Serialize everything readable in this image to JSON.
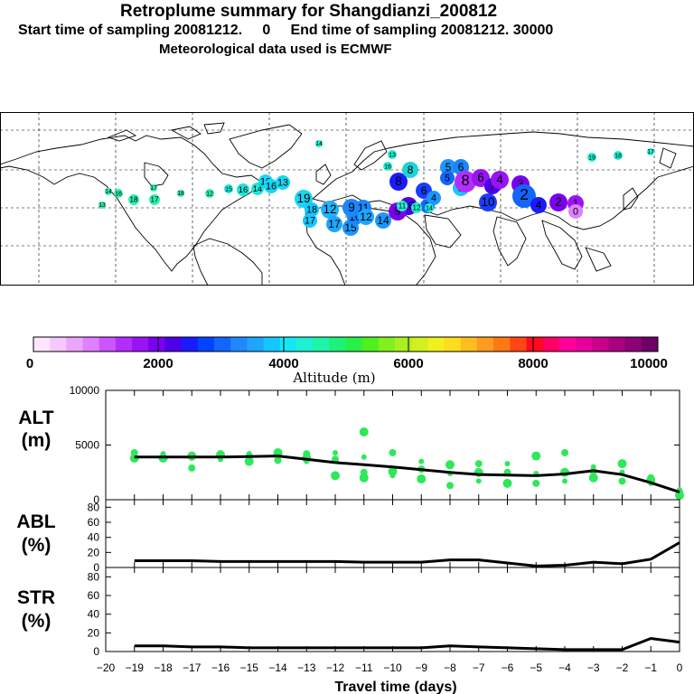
{
  "header": {
    "title": "Retroplume summary for Shangdianzi_200812",
    "line2": "Start time of sampling 20081212.     0     End time of sampling 20081212. 30000",
    "line3": "Meteorological data used is ECMWF"
  },
  "colorbar": {
    "label": "Altitude (m)",
    "ticks": [
      "0",
      "2000",
      "4000",
      "6000",
      "8000",
      "10000"
    ],
    "colors": [
      "#ffe6ff",
      "#f5c8ff",
      "#eaa6ff",
      "#de80ff",
      "#cc55ff",
      "#b42dff",
      "#9914f5",
      "#7a00f0",
      "#4d00e6",
      "#1a1aff",
      "#0044ff",
      "#1464ff",
      "#2088ff",
      "#1ea6ff",
      "#14c8ff",
      "#14e6f5",
      "#1ef0d2",
      "#1ef5aa",
      "#1ef078",
      "#28f046",
      "#50f01e",
      "#82f01e",
      "#aaf01e",
      "#d2f01e",
      "#f0f01e",
      "#ffdc1e",
      "#ffbe1e",
      "#ff9b1e",
      "#ff7814",
      "#ff4614",
      "#ff0a1e",
      "#ff0064",
      "#ff009b",
      "#e6009b",
      "#c8008c",
      "#aa0082",
      "#8c0078",
      "#6e0064"
    ]
  },
  "map": {
    "markers": [
      {
        "label": "13",
        "color": "#2ef0b0"
      },
      {
        "label": "16",
        "color": "#2ef0b0"
      },
      {
        "label": "18",
        "color": "#2ef0b0"
      },
      {
        "label": "17",
        "color": "#2ef0b0"
      },
      {
        "label": "14",
        "color": "#2ef0b0"
      },
      {
        "label": "18",
        "color": "#2ef0b0"
      },
      {
        "label": "17",
        "color": "#2ef0b0"
      },
      {
        "label": "12",
        "color": "#2ef0b0"
      },
      {
        "label": "15",
        "color": "#1ee6d8"
      },
      {
        "label": "16",
        "color": "#1ee6d8"
      },
      {
        "label": "14",
        "color": "#1ee6d8"
      },
      {
        "label": "10",
        "color": "#14d8f5"
      },
      {
        "label": "16",
        "color": "#14d8f5"
      },
      {
        "label": "13",
        "color": "#14d8f5"
      },
      {
        "label": "19",
        "color": "#14d8f5"
      },
      {
        "label": "17",
        "color": "#14c8ff"
      },
      {
        "label": "18",
        "color": "#14c8ff"
      },
      {
        "label": "12",
        "color": "#1eb4ff"
      },
      {
        "label": "17",
        "color": "#1ea6ff"
      },
      {
        "label": "15",
        "color": "#1e96ff"
      },
      {
        "label": "10",
        "color": "#1a86ff"
      },
      {
        "label": "9",
        "color": "#1a86ff"
      },
      {
        "label": "11",
        "color": "#1a86ff"
      },
      {
        "label": "12",
        "color": "#1ea6ff"
      },
      {
        "label": "14",
        "color": "#1e96ff"
      },
      {
        "label": "10",
        "color": "#4d00e6"
      },
      {
        "label": "8",
        "color": "#1a1aff"
      },
      {
        "label": "9",
        "color": "#7a00f0"
      },
      {
        "label": "8",
        "color": "#1ed4d4"
      },
      {
        "label": "6",
        "color": "#1a3cff"
      },
      {
        "label": "7",
        "color": "#1464ff"
      },
      {
        "label": "4",
        "color": "#1e96ff"
      },
      {
        "label": "5",
        "color": "#1e96ff"
      },
      {
        "label": "6",
        "color": "#1a86ff"
      },
      {
        "label": "5",
        "color": "#14c8ff"
      },
      {
        "label": "5",
        "color": "#1464ff"
      },
      {
        "label": "8",
        "color": "#b42dff"
      },
      {
        "label": "6",
        "color": "#9914f5"
      },
      {
        "label": "7",
        "color": "#4d00e6"
      },
      {
        "label": "4",
        "color": "#9914f5"
      },
      {
        "label": "3",
        "color": "#7a00f0"
      },
      {
        "label": "10",
        "color": "#1a3cff"
      },
      {
        "label": "2",
        "color": "#1464ff"
      },
      {
        "label": "4",
        "color": "#1a1aff"
      },
      {
        "label": "2",
        "color": "#7a00f0"
      },
      {
        "label": "1",
        "color": "#9914f5"
      },
      {
        "label": "0",
        "color": "#de80ff"
      },
      {
        "label": "14",
        "color": "#1ef0d2"
      },
      {
        "label": "19",
        "color": "#1ef0d2"
      },
      {
        "label": "18",
        "color": "#1ef0d2"
      },
      {
        "label": "17",
        "color": "#1ef0d2"
      },
      {
        "label": "11",
        "color": "#1ef0d2"
      },
      {
        "label": "12",
        "color": "#1ef0d2"
      },
      {
        "label": "14",
        "color": "#1ef0d2"
      },
      {
        "label": "16",
        "color": "#1ef0d2"
      },
      {
        "label": "13",
        "color": "#1ef0d2"
      }
    ]
  },
  "chart_data": [
    {
      "type": "scatter",
      "name": "ALT",
      "ylabel": "ALT\n(m)",
      "ylim": [
        0,
        10000
      ],
      "y_ticks": [
        "0",
        "5000",
        "10000"
      ],
      "x": [
        -19,
        -18,
        -17,
        -16,
        -15,
        -14,
        -13,
        -12,
        -11,
        -10,
        -9,
        -8,
        -7,
        -6,
        -5,
        -4,
        -3,
        -2,
        -1,
        0
      ],
      "mean_altitude_m": [
        3900,
        3900,
        3900,
        3900,
        3950,
        4000,
        3700,
        3400,
        3200,
        3000,
        2750,
        2500,
        2300,
        2250,
        2200,
        2350,
        2650,
        2300,
        1550,
        700
      ],
      "cluster_points": [
        {
          "x": -19,
          "y": [
            4300,
            3800,
            3700
          ]
        },
        {
          "x": -18,
          "y": [
            4200,
            3900,
            3800
          ]
        },
        {
          "x": -17,
          "y": [
            4000,
            3800,
            2900
          ]
        },
        {
          "x": -16,
          "y": [
            4200,
            4100,
            3700
          ]
        },
        {
          "x": -15,
          "y": [
            4200,
            4000,
            3500
          ]
        },
        {
          "x": -14,
          "y": [
            4300,
            3800,
            3600
          ]
        },
        {
          "x": -13,
          "y": [
            4200,
            3800,
            3500
          ]
        },
        {
          "x": -12,
          "y": [
            4300,
            3700,
            2200
          ]
        },
        {
          "x": -11,
          "y": [
            6200,
            3900,
            2500,
            2000
          ]
        },
        {
          "x": -10,
          "y": [
            4300,
            2600,
            2200
          ]
        },
        {
          "x": -9,
          "y": [
            3500,
            2800,
            1900
          ]
        },
        {
          "x": -8,
          "y": [
            3200,
            2400,
            1300
          ]
        },
        {
          "x": -7,
          "y": [
            3300,
            2500,
            1700
          ]
        },
        {
          "x": -6,
          "y": [
            3300,
            2500,
            1500
          ]
        },
        {
          "x": -5,
          "y": [
            4000,
            2400,
            1500
          ]
        },
        {
          "x": -4,
          "y": [
            4300,
            2500,
            1700
          ]
        },
        {
          "x": -3,
          "y": [
            3000,
            2600,
            2000
          ]
        },
        {
          "x": -2,
          "y": [
            3300,
            2500,
            1700
          ]
        },
        {
          "x": -1,
          "y": [
            2000,
            1800,
            1500
          ]
        },
        {
          "x": 0,
          "y": [
            900,
            700,
            400
          ]
        }
      ]
    },
    {
      "type": "line",
      "name": "ABL",
      "ylabel": "ABL\n(%)",
      "ylim": [
        0,
        90
      ],
      "y_ticks": [
        "0",
        "20",
        "40",
        "60",
        "80"
      ],
      "x": [
        -19,
        -18,
        -17,
        -16,
        -15,
        -14,
        -13,
        -12,
        -11,
        -10,
        -9,
        -8,
        -7,
        -6,
        -5,
        -4,
        -3,
        -2,
        -1,
        0
      ],
      "values": [
        9,
        9,
        9,
        8,
        8,
        8,
        8,
        8,
        7,
        7,
        7,
        10,
        10,
        6,
        2,
        3,
        7,
        5,
        11,
        33
      ]
    },
    {
      "type": "line",
      "name": "STR",
      "ylabel": "STR\n(%)",
      "ylim": [
        0,
        90
      ],
      "y_ticks": [
        "0",
        "20",
        "40",
        "60",
        "80"
      ],
      "xlabel": "Travel time (days)",
      "x_ticks": [
        "-20",
        "-19",
        "-18",
        "-17",
        "-16",
        "-15",
        "-14",
        "-13",
        "-12",
        "-11",
        "-10",
        "-9",
        "-8",
        "-7",
        "-6",
        "-5",
        "-4",
        "-3",
        "-2",
        "-1",
        "0"
      ],
      "x": [
        -19,
        -18,
        -17,
        -16,
        -15,
        -14,
        -13,
        -12,
        -11,
        -10,
        -9,
        -8,
        -7,
        -6,
        -5,
        -4,
        -3,
        -2,
        -1,
        0
      ],
      "values": [
        6,
        6,
        5,
        5,
        4,
        4,
        4,
        4,
        4,
        4,
        4,
        6,
        5,
        4,
        3,
        2,
        2,
        2,
        14,
        10
      ]
    }
  ]
}
